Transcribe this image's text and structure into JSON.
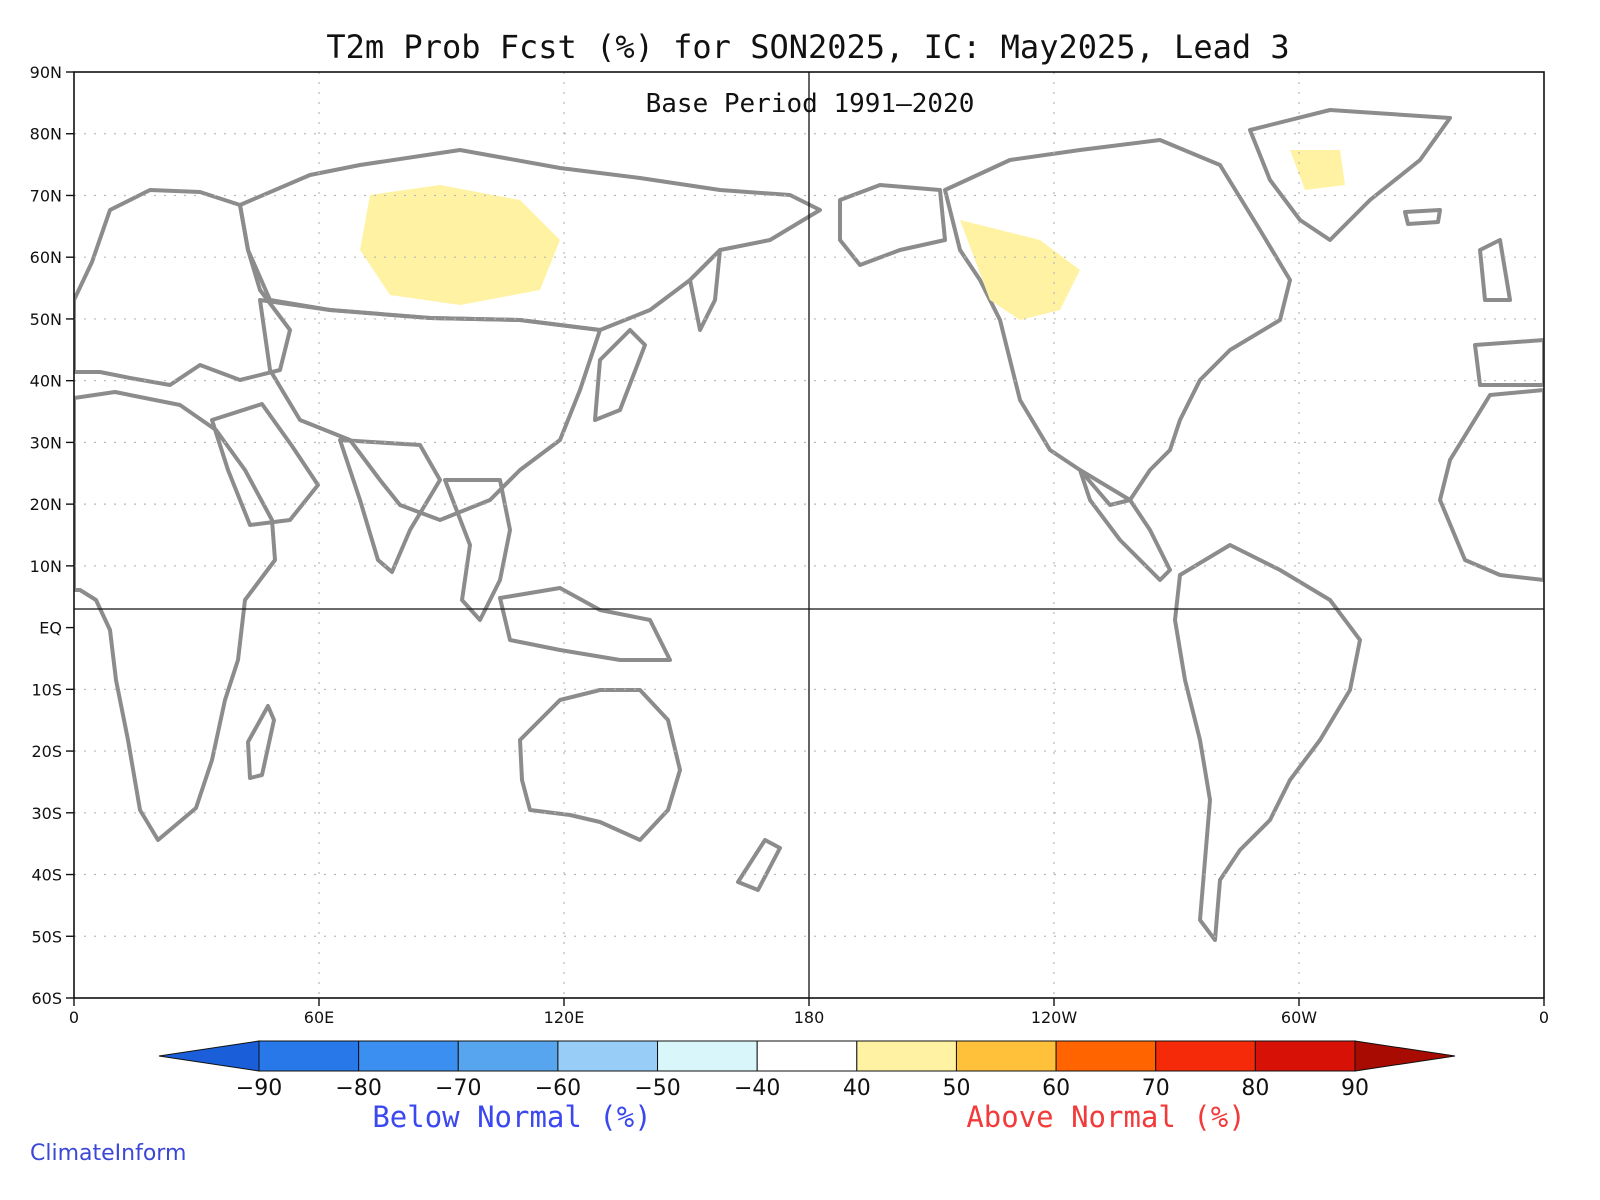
{
  "title": "T2m Prob Fcst (%) for SON2025, IC: May2025, Lead 3",
  "subtitle": "Base Period 1991–2020",
  "lat_labels": [
    "90N",
    "80N",
    "70N",
    "60N",
    "50N",
    "40N",
    "30N",
    "20N",
    "10N",
    "EQ",
    "10S",
    "20S",
    "30S",
    "40S",
    "50S",
    "60S"
  ],
  "lon_labels": [
    "0",
    "60E",
    "120E",
    "180",
    "120W",
    "60W",
    "0"
  ],
  "colorbar": {
    "colors": [
      "#1a5fd9",
      "#2878ea",
      "#3b8ff0",
      "#56a5ee",
      "#97cdf7",
      "#d9f6fb",
      "#ffffff",
      "#fff3a3",
      "#ffc03a",
      "#ff6400",
      "#f52a08",
      "#d71106",
      "#a80b02"
    ],
    "labels": [
      "−90",
      "−80",
      "−70",
      "−60",
      "−50",
      "−40",
      "40",
      "50",
      "60",
      "70",
      "80",
      "90"
    ]
  },
  "below_label": "Below Normal (%)",
  "above_label": "Above Normal (%)",
  "below_color": "#3b48f0",
  "above_color": "#f23a3a",
  "brand": "ClimateInform"
}
